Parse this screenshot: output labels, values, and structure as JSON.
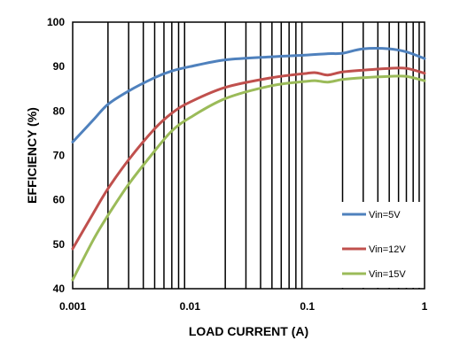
{
  "chart_data": {
    "type": "line",
    "title": "",
    "xlabel": "LOAD CURRENT (A)",
    "ylabel": "EFFICIENCY (%)",
    "x_scale": "log",
    "xlim": [
      0.001,
      1
    ],
    "ylim": [
      40,
      100
    ],
    "grid": "vertical",
    "legend_position": "bottom-right",
    "x_ticks": [
      "0.001",
      "0.01",
      "0.1",
      "1"
    ],
    "y_ticks": [
      "40",
      "50",
      "60",
      "70",
      "80",
      "90",
      "100"
    ],
    "series": [
      {
        "name": "Vin=5V",
        "color": "#4f81bd",
        "x": [
          0.001,
          0.0015,
          0.002,
          0.003,
          0.005,
          0.007,
          0.01,
          0.02,
          0.05,
          0.1,
          0.15,
          0.2,
          0.3,
          0.5,
          0.7,
          1
        ],
        "y": [
          73,
          78,
          81.5,
          84.5,
          87.5,
          89,
          90,
          91.5,
          92.2,
          92.6,
          92.9,
          93,
          94,
          94,
          93.3,
          91.8
        ]
      },
      {
        "name": "Vin=12V",
        "color": "#c0504d",
        "x": [
          0.001,
          0.0015,
          0.002,
          0.003,
          0.005,
          0.007,
          0.01,
          0.02,
          0.05,
          0.1,
          0.12,
          0.15,
          0.2,
          0.3,
          0.5,
          0.7,
          1
        ],
        "y": [
          49,
          57,
          62.5,
          69,
          76,
          79.5,
          82,
          85.3,
          87.5,
          88.5,
          88.6,
          88.1,
          88.8,
          89.2,
          89.6,
          89.6,
          88.5
        ]
      },
      {
        "name": "Vin=15V",
        "color": "#9bbb59",
        "x": [
          0.001,
          0.0015,
          0.002,
          0.003,
          0.005,
          0.007,
          0.01,
          0.02,
          0.05,
          0.1,
          0.12,
          0.15,
          0.2,
          0.3,
          0.5,
          0.7,
          1
        ],
        "y": [
          42,
          51,
          56.5,
          63.5,
          71,
          75.5,
          78.5,
          82.8,
          85.7,
          86.7,
          86.8,
          86.5,
          87.1,
          87.5,
          87.8,
          87.8,
          86.8
        ]
      }
    ]
  }
}
